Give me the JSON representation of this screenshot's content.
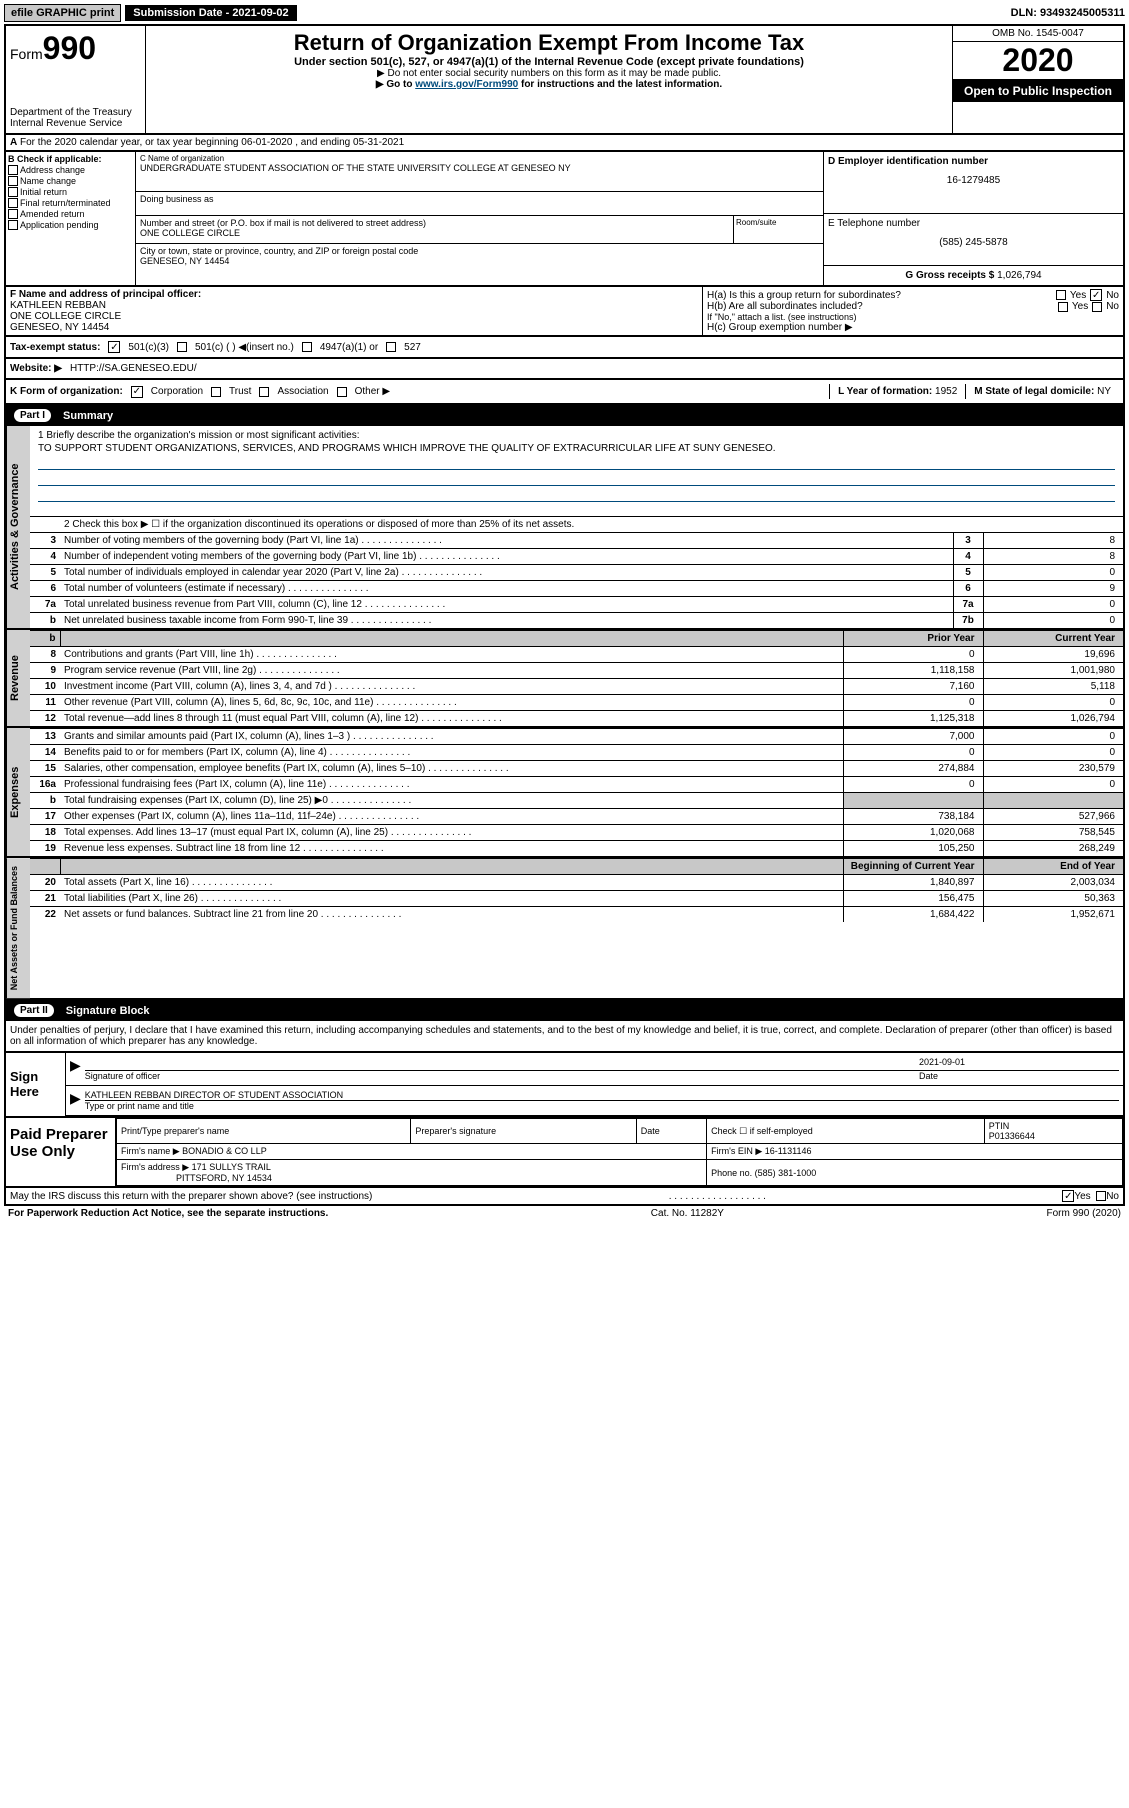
{
  "topbar": {
    "efile": "efile GRAPHIC print",
    "submission_label": "Submission Date - 2021-09-02",
    "dln": "DLN: 93493245005311"
  },
  "header": {
    "form_prefix": "Form",
    "form_number": "990",
    "dept": "Department of the Treasury\nInternal Revenue Service",
    "title": "Return of Organization Exempt From Income Tax",
    "subtitle": "Under section 501(c), 527, or 4947(a)(1) of the Internal Revenue Code (except private foundations)",
    "note1": "▶ Do not enter social security numbers on this form as it may be made public.",
    "note2_pre": "▶ Go to ",
    "note2_link": "www.irs.gov/Form990",
    "note2_post": " for instructions and the latest information.",
    "omb": "OMB No. 1545-0047",
    "year": "2020",
    "otp": "Open to Public Inspection"
  },
  "row_a": "For the 2020 calendar year, or tax year beginning 06-01-2020    , and ending 05-31-2021",
  "col_b": {
    "label": "B Check if applicable:",
    "items": [
      "Address change",
      "Name change",
      "Initial return",
      "Final return/terminated",
      "Amended return",
      "Application pending"
    ]
  },
  "org": {
    "name_lbl": "C Name of organization",
    "name": "UNDERGRADUATE STUDENT ASSOCIATION OF THE STATE UNIVERSITY COLLEGE AT GENESEO NY",
    "dba_lbl": "Doing business as",
    "addr_lbl": "Number and street (or P.O. box if mail is not delivered to street address)",
    "room_lbl": "Room/suite",
    "addr": "ONE COLLEGE CIRCLE",
    "city_lbl": "City or town, state or province, country, and ZIP or foreign postal code",
    "city": "GENESEO, NY  14454"
  },
  "ein": {
    "lbl": "D Employer identification number",
    "val": "16-1279485"
  },
  "phone": {
    "lbl": "E Telephone number",
    "val": "(585) 245-5878"
  },
  "gross": {
    "lbl": "G Gross receipts $",
    "val": "1,026,794"
  },
  "f_box": {
    "lbl": "F Name and address of principal officer:",
    "name": "KATHLEEN REBBAN",
    "addr1": "ONE COLLEGE CIRCLE",
    "addr2": "GENESEO, NY  14454"
  },
  "h": {
    "a_lbl": "H(a)  Is this a group return for subordinates?",
    "a_yes": "Yes",
    "a_no": "No",
    "b_lbl": "H(b)  Are all subordinates included?",
    "b_note": "If \"No,\" attach a list. (see instructions)",
    "c_lbl": "H(c)  Group exemption number ▶"
  },
  "i": {
    "lbl": "Tax-exempt status:",
    "opt1": "501(c)(3)",
    "opt2": "501(c) (  ) ◀(insert no.)",
    "opt3": "4947(a)(1) or",
    "opt4": "527"
  },
  "j": {
    "lbl": "Website: ▶",
    "val": "HTTP://SA.GENESEO.EDU/"
  },
  "k": {
    "lbl": "K Form of organization:",
    "opts": [
      "Corporation",
      "Trust",
      "Association",
      "Other ▶"
    ],
    "l_lbl": "L Year of formation:",
    "l_val": "1952",
    "m_lbl": "M State of legal domicile:",
    "m_val": "NY"
  },
  "part1": {
    "hdr_roman": "Part I",
    "hdr_title": "Summary",
    "q1_lbl": "1  Briefly describe the organization's mission or most significant activities:",
    "q1_ans": "TO SUPPORT STUDENT ORGANIZATIONS, SERVICES, AND PROGRAMS WHICH IMPROVE THE QUALITY OF EXTRACURRICULAR LIFE AT SUNY GENESEO.",
    "q2": "2  Check this box ▶ ☐ if the organization discontinued its operations or disposed of more than 25% of its net assets.",
    "rows_ag": [
      {
        "n": "3",
        "t": "Number of voting members of the governing body (Part VI, line 1a)",
        "box": "3",
        "v": "8"
      },
      {
        "n": "4",
        "t": "Number of independent voting members of the governing body (Part VI, line 1b)",
        "box": "4",
        "v": "8"
      },
      {
        "n": "5",
        "t": "Total number of individuals employed in calendar year 2020 (Part V, line 2a)",
        "box": "5",
        "v": "0"
      },
      {
        "n": "6",
        "t": "Total number of volunteers (estimate if necessary)",
        "box": "6",
        "v": "9"
      },
      {
        "n": "7a",
        "t": "Total unrelated business revenue from Part VIII, column (C), line 12",
        "box": "7a",
        "v": "0"
      },
      {
        "n": "b",
        "t": "Net unrelated business taxable income from Form 990-T, line 39",
        "box": "7b",
        "v": "0"
      }
    ],
    "col_prior": "Prior Year",
    "col_curr": "Current Year",
    "rows_rev": [
      {
        "n": "8",
        "t": "Contributions and grants (Part VIII, line 1h)",
        "p": "0",
        "c": "19,696"
      },
      {
        "n": "9",
        "t": "Program service revenue (Part VIII, line 2g)",
        "p": "1,118,158",
        "c": "1,001,980"
      },
      {
        "n": "10",
        "t": "Investment income (Part VIII, column (A), lines 3, 4, and 7d )",
        "p": "7,160",
        "c": "5,118"
      },
      {
        "n": "11",
        "t": "Other revenue (Part VIII, column (A), lines 5, 6d, 8c, 9c, 10c, and 11e)",
        "p": "0",
        "c": "0"
      },
      {
        "n": "12",
        "t": "Total revenue—add lines 8 through 11 (must equal Part VIII, column (A), line 12)",
        "p": "1,125,318",
        "c": "1,026,794"
      }
    ],
    "rows_exp": [
      {
        "n": "13",
        "t": "Grants and similar amounts paid (Part IX, column (A), lines 1–3 )",
        "p": "7,000",
        "c": "0"
      },
      {
        "n": "14",
        "t": "Benefits paid to or for members (Part IX, column (A), line 4)",
        "p": "0",
        "c": "0"
      },
      {
        "n": "15",
        "t": "Salaries, other compensation, employee benefits (Part IX, column (A), lines 5–10)",
        "p": "274,884",
        "c": "230,579"
      },
      {
        "n": "16a",
        "t": "Professional fundraising fees (Part IX, column (A), line 11e)",
        "p": "0",
        "c": "0"
      },
      {
        "n": "b",
        "t": "Total fundraising expenses (Part IX, column (D), line 25) ▶0",
        "p": "",
        "c": "",
        "shade": true
      },
      {
        "n": "17",
        "t": "Other expenses (Part IX, column (A), lines 11a–11d, 11f–24e)",
        "p": "738,184",
        "c": "527,966"
      },
      {
        "n": "18",
        "t": "Total expenses. Add lines 13–17 (must equal Part IX, column (A), line 25)",
        "p": "1,020,068",
        "c": "758,545"
      },
      {
        "n": "19",
        "t": "Revenue less expenses. Subtract line 18 from line 12",
        "p": "105,250",
        "c": "268,249"
      }
    ],
    "col_beg": "Beginning of Current Year",
    "col_end": "End of Year",
    "rows_net": [
      {
        "n": "20",
        "t": "Total assets (Part X, line 16)",
        "p": "1,840,897",
        "c": "2,003,034"
      },
      {
        "n": "21",
        "t": "Total liabilities (Part X, line 26)",
        "p": "156,475",
        "c": "50,363"
      },
      {
        "n": "22",
        "t": "Net assets or fund balances. Subtract line 21 from line 20",
        "p": "1,684,422",
        "c": "1,952,671"
      }
    ],
    "vlabels": [
      "Activities & Governance",
      "Revenue",
      "Expenses",
      "Net Assets or Fund Balances"
    ]
  },
  "part2": {
    "hdr_roman": "Part II",
    "hdr_title": "Signature Block",
    "penalties": "Under penalties of perjury, I declare that I have examined this return, including accompanying schedules and statements, and to the best of my knowledge and belief, it is true, correct, and complete. Declaration of preparer (other than officer) is based on all information of which preparer has any knowledge.",
    "sign_here": "Sign Here",
    "sig_officer_lbl": "Signature of officer",
    "sig_date": "2021-09-01",
    "sig_date_lbl": "Date",
    "typed_name": "KATHLEEN REBBAN  DIRECTOR OF STUDENT ASSOCIATION",
    "typed_lbl": "Type or print name and title",
    "paid": "Paid Preparer Use Only",
    "p_name_lbl": "Print/Type preparer's name",
    "p_sig_lbl": "Preparer's signature",
    "p_date_lbl": "Date",
    "p_self_lbl": "Check ☐ if self-employed",
    "ptin_lbl": "PTIN",
    "ptin": "P01336644",
    "firm_lbl": "Firm's name    ▶",
    "firm": "BONADIO & CO LLP",
    "firm_ein_lbl": "Firm's EIN ▶",
    "firm_ein": "16-1131146",
    "firm_addr_lbl": "Firm's address ▶",
    "firm_addr1": "171 SULLYS TRAIL",
    "firm_addr2": "PITTSFORD, NY  14534",
    "firm_phone_lbl": "Phone no.",
    "firm_phone": "(585) 381-1000",
    "irs_q": "May the IRS discuss this return with the preparer shown above? (see instructions)",
    "yes": "Yes",
    "no": "No"
  },
  "footer": {
    "pra": "For Paperwork Reduction Act Notice, see the separate instructions.",
    "cat": "Cat. No. 11282Y",
    "form": "Form 990 (2020)"
  },
  "colors": {
    "link": "#004b7c",
    "shade": "#c8c8c8"
  }
}
